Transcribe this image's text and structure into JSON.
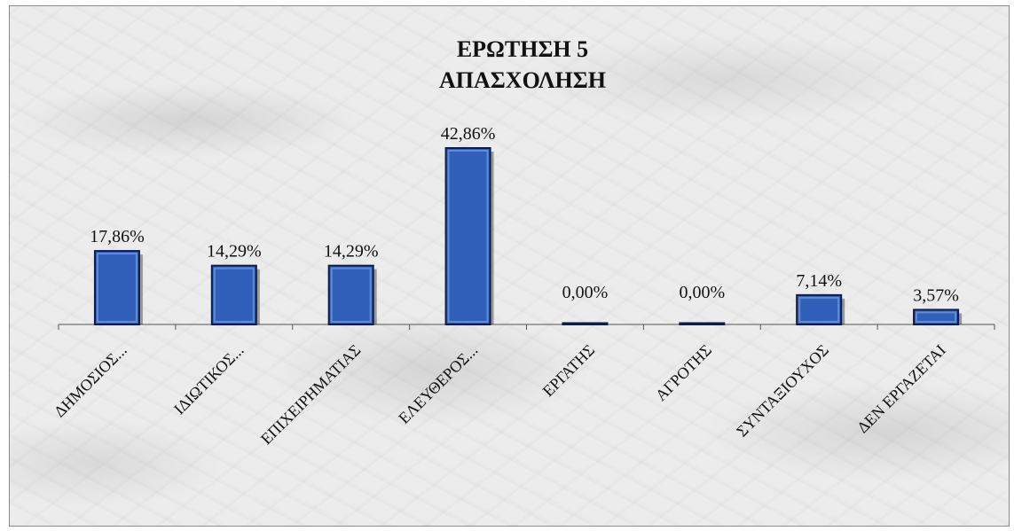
{
  "chart_data": {
    "type": "bar",
    "title": "ΕΡΩΤΗΣΗ 5",
    "subtitle": "ΑΠΑΣΧΟΛΗΣΗ",
    "categories": [
      "ΔΗΜΟΣΙΟΣ...",
      "ΙΔΙΩΤΙΚΟΣ...",
      "ΕΠΙΧΕΙΡΗΜΑΤΙΑΣ",
      "ΕΛΕΥΘΕΡΟΣ...",
      "ΕΡΓΑΤΗΣ",
      "ΑΓΡΟΤΗΣ",
      "ΣΥΝΤΑΞΙΟΥΧΟΣ",
      "ΔΕΝ ΕΡΓΑΖΕΤΑΙ"
    ],
    "values": [
      17.86,
      14.29,
      14.29,
      42.86,
      0.0,
      0.0,
      7.14,
      3.57
    ],
    "data_labels": [
      "17,86%",
      "14,29%",
      "14,29%",
      "42,86%",
      "0,00%",
      "0,00%",
      "7,14%",
      "3,57%"
    ],
    "ylim": [
      0,
      45
    ],
    "grid": false,
    "legend": "none",
    "bar_color": "#2f5fb8",
    "bar_edge_color": "#0b1d4a"
  }
}
